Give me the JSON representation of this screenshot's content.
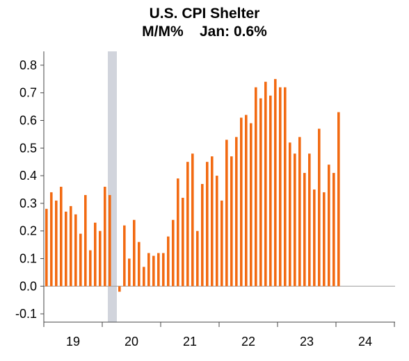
{
  "chart_data": {
    "type": "bar",
    "title": "U.S. CPI Shelter",
    "subtitle": "M/M%    Jan: 0.6%",
    "xlabel": "",
    "ylabel": "",
    "ylim": [
      -0.13,
      0.85
    ],
    "yticks": [
      "0.8",
      "0.7",
      "0.6",
      "0.5",
      "0.4",
      "0.3",
      "0.2",
      "0.1",
      "0.0",
      "-0.1"
    ],
    "ytick_values": [
      0.8,
      0.7,
      0.6,
      0.5,
      0.4,
      0.3,
      0.2,
      0.1,
      0.0,
      -0.1
    ],
    "xticks": [
      "19",
      "20",
      "21",
      "22",
      "23",
      "24"
    ],
    "recession_shading": {
      "start": "2020-02",
      "end": "2020-04"
    },
    "bar_color": "#f26a12",
    "shading_color": "#d1d4dc",
    "grid": false,
    "x": [
      "2019-01",
      "2019-02",
      "2019-03",
      "2019-04",
      "2019-05",
      "2019-06",
      "2019-07",
      "2019-08",
      "2019-09",
      "2019-10",
      "2019-11",
      "2019-12",
      "2020-01",
      "2020-02",
      "2020-03",
      "2020-04",
      "2020-05",
      "2020-06",
      "2020-07",
      "2020-08",
      "2020-09",
      "2020-10",
      "2020-11",
      "2020-12",
      "2021-01",
      "2021-02",
      "2021-03",
      "2021-04",
      "2021-05",
      "2021-06",
      "2021-07",
      "2021-08",
      "2021-09",
      "2021-10",
      "2021-11",
      "2021-12",
      "2022-01",
      "2022-02",
      "2022-03",
      "2022-04",
      "2022-05",
      "2022-06",
      "2022-07",
      "2022-08",
      "2022-09",
      "2022-10",
      "2022-11",
      "2022-12",
      "2023-01",
      "2023-02",
      "2023-03",
      "2023-04",
      "2023-05",
      "2023-06",
      "2023-07",
      "2023-08",
      "2023-09",
      "2023-10",
      "2023-11",
      "2023-12",
      "2024-01"
    ],
    "values": [
      0.28,
      0.34,
      0.31,
      0.36,
      0.27,
      0.29,
      0.26,
      0.19,
      0.33,
      0.13,
      0.23,
      0.2,
      0.36,
      0.33,
      0.0,
      -0.02,
      0.22,
      0.1,
      0.24,
      0.16,
      0.07,
      0.12,
      0.11,
      0.12,
      0.12,
      0.18,
      0.24,
      0.39,
      0.32,
      0.45,
      0.48,
      0.2,
      0.37,
      0.45,
      0.47,
      0.4,
      0.31,
      0.53,
      0.47,
      0.54,
      0.61,
      0.62,
      0.59,
      0.72,
      0.68,
      0.74,
      0.69,
      0.75,
      0.72,
      0.72,
      0.52,
      0.48,
      0.54,
      0.41,
      0.48,
      0.35,
      0.57,
      0.34,
      0.44,
      0.41,
      0.63
    ]
  }
}
